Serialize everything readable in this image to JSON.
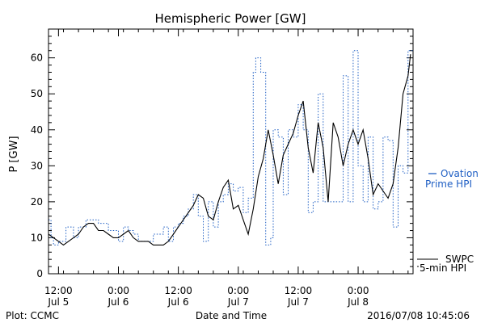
{
  "chart_data": {
    "type": "line",
    "title": "Hemispheric Power [GW]",
    "xlabel": "Date and Time",
    "ylabel": "P [GW]",
    "ylim": [
      0,
      68
    ],
    "y_ticks": [
      0,
      10,
      20,
      30,
      40,
      50,
      60
    ],
    "xlim": [
      "2016-07-05 10:00",
      "2016-07-08 11:00"
    ],
    "x_ticks": [
      {
        "time": "2016-07-05 12:00",
        "line1": "12:00",
        "line2": "Jul 5"
      },
      {
        "time": "2016-07-06 00:00",
        "line1": "0:00",
        "line2": "Jul 6"
      },
      {
        "time": "2016-07-06 12:00",
        "line1": "12:00",
        "line2": "Jul 6"
      },
      {
        "time": "2016-07-07 00:00",
        "line1": "0:00",
        "line2": "Jul 7"
      },
      {
        "time": "2016-07-07 12:00",
        "line1": "12:00",
        "line2": "Jul 7"
      },
      {
        "time": "2016-07-08 00:00",
        "line1": "0:00",
        "line2": "Jul 8"
      }
    ],
    "grid": false,
    "legend_position": "right",
    "series": [
      {
        "name": "Ovation Prime HPI",
        "legend_lines": [
          "Ovation",
          "Prime HPI"
        ],
        "style": "step-dotted",
        "color": "#1f5fc4",
        "x": [
          "2016-07-05 10:00",
          "2016-07-05 10:30",
          "2016-07-05 11:00",
          "2016-07-05 12:00",
          "2016-07-05 13:30",
          "2016-07-05 15:00",
          "2016-07-05 16:00",
          "2016-07-05 17:30",
          "2016-07-05 19:00",
          "2016-07-05 20:00",
          "2016-07-05 22:00",
          "2016-07-06 00:00",
          "2016-07-06 01:00",
          "2016-07-06 02:00",
          "2016-07-06 03:00",
          "2016-07-06 04:00",
          "2016-07-06 05:30",
          "2016-07-06 07:00",
          "2016-07-06 09:00",
          "2016-07-06 10:00",
          "2016-07-06 11:00",
          "2016-07-06 12:00",
          "2016-07-06 13:00",
          "2016-07-06 14:00",
          "2016-07-06 15:00",
          "2016-07-06 16:00",
          "2016-07-06 17:00",
          "2016-07-06 18:00",
          "2016-07-06 19:00",
          "2016-07-06 20:00",
          "2016-07-06 21:00",
          "2016-07-06 22:00",
          "2016-07-06 23:00",
          "2016-07-07 00:00",
          "2016-07-07 01:00",
          "2016-07-07 02:00",
          "2016-07-07 03:00",
          "2016-07-07 03:30",
          "2016-07-07 04:30",
          "2016-07-07 05:30",
          "2016-07-07 06:30",
          "2016-07-07 07:00",
          "2016-07-07 08:00",
          "2016-07-07 09:00",
          "2016-07-07 10:00",
          "2016-07-07 11:00",
          "2016-07-07 12:00",
          "2016-07-07 13:00",
          "2016-07-07 14:00",
          "2016-07-07 15:00",
          "2016-07-07 16:00",
          "2016-07-07 17:00",
          "2016-07-07 18:00",
          "2016-07-07 19:00",
          "2016-07-07 20:00",
          "2016-07-07 21:00",
          "2016-07-07 22:00",
          "2016-07-07 23:00",
          "2016-07-08 00:00",
          "2016-07-08 01:00",
          "2016-07-08 02:00",
          "2016-07-08 03:00",
          "2016-07-08 04:00",
          "2016-07-08 05:00",
          "2016-07-08 06:00",
          "2016-07-08 07:00",
          "2016-07-08 08:00",
          "2016-07-08 09:00",
          "2016-07-08 10:00",
          "2016-07-08 10:30",
          "2016-07-08 11:00"
        ],
        "y": [
          15,
          10,
          8,
          9,
          13,
          10,
          13,
          15,
          15,
          14,
          12,
          9,
          13,
          12,
          11,
          9,
          9,
          11,
          13,
          9,
          13,
          14,
          16,
          18,
          22,
          16,
          9,
          20,
          13,
          20,
          22,
          25,
          23,
          24,
          17,
          21,
          56,
          60,
          56,
          8,
          10,
          40,
          38,
          22,
          40,
          38,
          47,
          40,
          17,
          20,
          50,
          20,
          20,
          20,
          20,
          55,
          20,
          62,
          30,
          20,
          38,
          18,
          20,
          38,
          37,
          13,
          30,
          28,
          62,
          62,
          62
        ]
      },
      {
        "name": "SWPC 5-min HPI",
        "legend_lines": [
          "SWPC",
          "5-min HPI"
        ],
        "style": "solid",
        "color": "#000000",
        "x": [
          "2016-07-05 10:00",
          "2016-07-05 11:00",
          "2016-07-05 12:00",
          "2016-07-05 13:00",
          "2016-07-05 14:00",
          "2016-07-05 15:00",
          "2016-07-05 16:00",
          "2016-07-05 17:00",
          "2016-07-05 18:00",
          "2016-07-05 19:00",
          "2016-07-05 20:00",
          "2016-07-05 21:00",
          "2016-07-05 22:00",
          "2016-07-05 23:00",
          "2016-07-06 00:00",
          "2016-07-06 01:00",
          "2016-07-06 02:00",
          "2016-07-06 03:00",
          "2016-07-06 04:00",
          "2016-07-06 05:00",
          "2016-07-06 06:00",
          "2016-07-06 07:00",
          "2016-07-06 08:00",
          "2016-07-06 09:00",
          "2016-07-06 10:00",
          "2016-07-06 11:00",
          "2016-07-06 12:00",
          "2016-07-06 13:00",
          "2016-07-06 14:00",
          "2016-07-06 15:00",
          "2016-07-06 16:00",
          "2016-07-06 17:00",
          "2016-07-06 18:00",
          "2016-07-06 19:00",
          "2016-07-06 20:00",
          "2016-07-06 21:00",
          "2016-07-06 22:00",
          "2016-07-06 23:00",
          "2016-07-07 00:00",
          "2016-07-07 01:00",
          "2016-07-07 02:00",
          "2016-07-07 03:00",
          "2016-07-07 04:00",
          "2016-07-07 05:00",
          "2016-07-07 06:00",
          "2016-07-07 07:00",
          "2016-07-07 08:00",
          "2016-07-07 09:00",
          "2016-07-07 10:00",
          "2016-07-07 11:00",
          "2016-07-07 12:00",
          "2016-07-07 13:00",
          "2016-07-07 14:00",
          "2016-07-07 15:00",
          "2016-07-07 16:00",
          "2016-07-07 17:00",
          "2016-07-07 18:00",
          "2016-07-07 19:00",
          "2016-07-07 20:00",
          "2016-07-07 21:00",
          "2016-07-07 22:00",
          "2016-07-07 23:00",
          "2016-07-08 00:00",
          "2016-07-08 01:00",
          "2016-07-08 02:00",
          "2016-07-08 03:00",
          "2016-07-08 04:00",
          "2016-07-08 05:00",
          "2016-07-08 06:00",
          "2016-07-08 07:00",
          "2016-07-08 08:00",
          "2016-07-08 09:00",
          "2016-07-08 10:00",
          "2016-07-08 10:30"
        ],
        "y": [
          11,
          10,
          9,
          8,
          9,
          10,
          11,
          13,
          14,
          14,
          12,
          12,
          11,
          10,
          10,
          11,
          12,
          10,
          9,
          9,
          9,
          8,
          8,
          8,
          9,
          11,
          13,
          15,
          17,
          19,
          22,
          21,
          16,
          15,
          20,
          24,
          26,
          18,
          19,
          15,
          11,
          18,
          27,
          32,
          40,
          33,
          25,
          33,
          36,
          39,
          44,
          48,
          35,
          28,
          42,
          35,
          20,
          42,
          38,
          30,
          36,
          40,
          36,
          40,
          32,
          22,
          25,
          23,
          21,
          25,
          35,
          50,
          55,
          61
        ]
      }
    ],
    "footer_left": "Plot: CCMC",
    "footer_right": "2016/07/08 10:45:06"
  }
}
